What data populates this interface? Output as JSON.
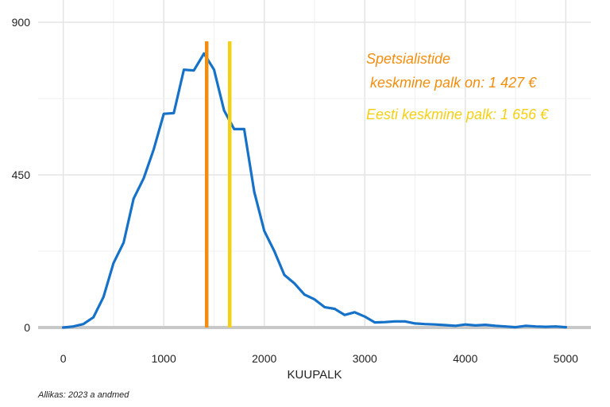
{
  "chart_data": {
    "type": "line",
    "title": "",
    "xlabel": "KUUPALK",
    "ylabel": "",
    "xlim": [
      -250,
      5250
    ],
    "ylim": [
      0,
      900
    ],
    "x_ticks": [
      "0",
      "1000",
      "2000",
      "3000",
      "4000",
      "5000"
    ],
    "y_ticks": [
      "0",
      "450",
      "900"
    ],
    "grid": true,
    "series": [
      {
        "color": "#1672c8",
        "x": [
          0,
          100,
          200,
          300,
          400,
          500,
          600,
          700,
          800,
          900,
          1000,
          1100,
          1200,
          1300,
          1400,
          1500,
          1600,
          1700,
          1800,
          1900,
          2000,
          2100,
          2200,
          2300,
          2400,
          2500,
          2600,
          2700,
          2800,
          2900,
          3000,
          3100,
          3200,
          3300,
          3400,
          3500,
          3600,
          3700,
          3800,
          3900,
          4000,
          4100,
          4200,
          4300,
          4400,
          4500,
          4600,
          4700,
          4800,
          4900,
          5000
        ],
        "y": [
          0,
          3,
          10,
          30,
          90,
          190,
          250,
          380,
          440,
          525,
          630,
          632,
          760,
          758,
          808,
          760,
          640,
          585,
          585,
          400,
          285,
          225,
          155,
          130,
          97,
          83,
          60,
          55,
          37,
          45,
          32,
          15,
          16,
          18,
          18,
          12,
          10,
          9,
          7,
          5,
          9,
          6,
          8,
          5,
          3,
          1,
          5,
          3,
          2,
          3,
          1
        ]
      }
    ],
    "reference_lines": [
      {
        "x": 1427,
        "color": "#f28e0e",
        "label_lines": [
          "Spetsialistide",
          " keskmine palk on: 1 427 €"
        ]
      },
      {
        "x": 1656,
        "color": "#f5d012",
        "label_lines": [
          "Eesti keskmine palk: 1 656 €"
        ]
      }
    ]
  },
  "caption": "Allikas: 2023 a andmed"
}
